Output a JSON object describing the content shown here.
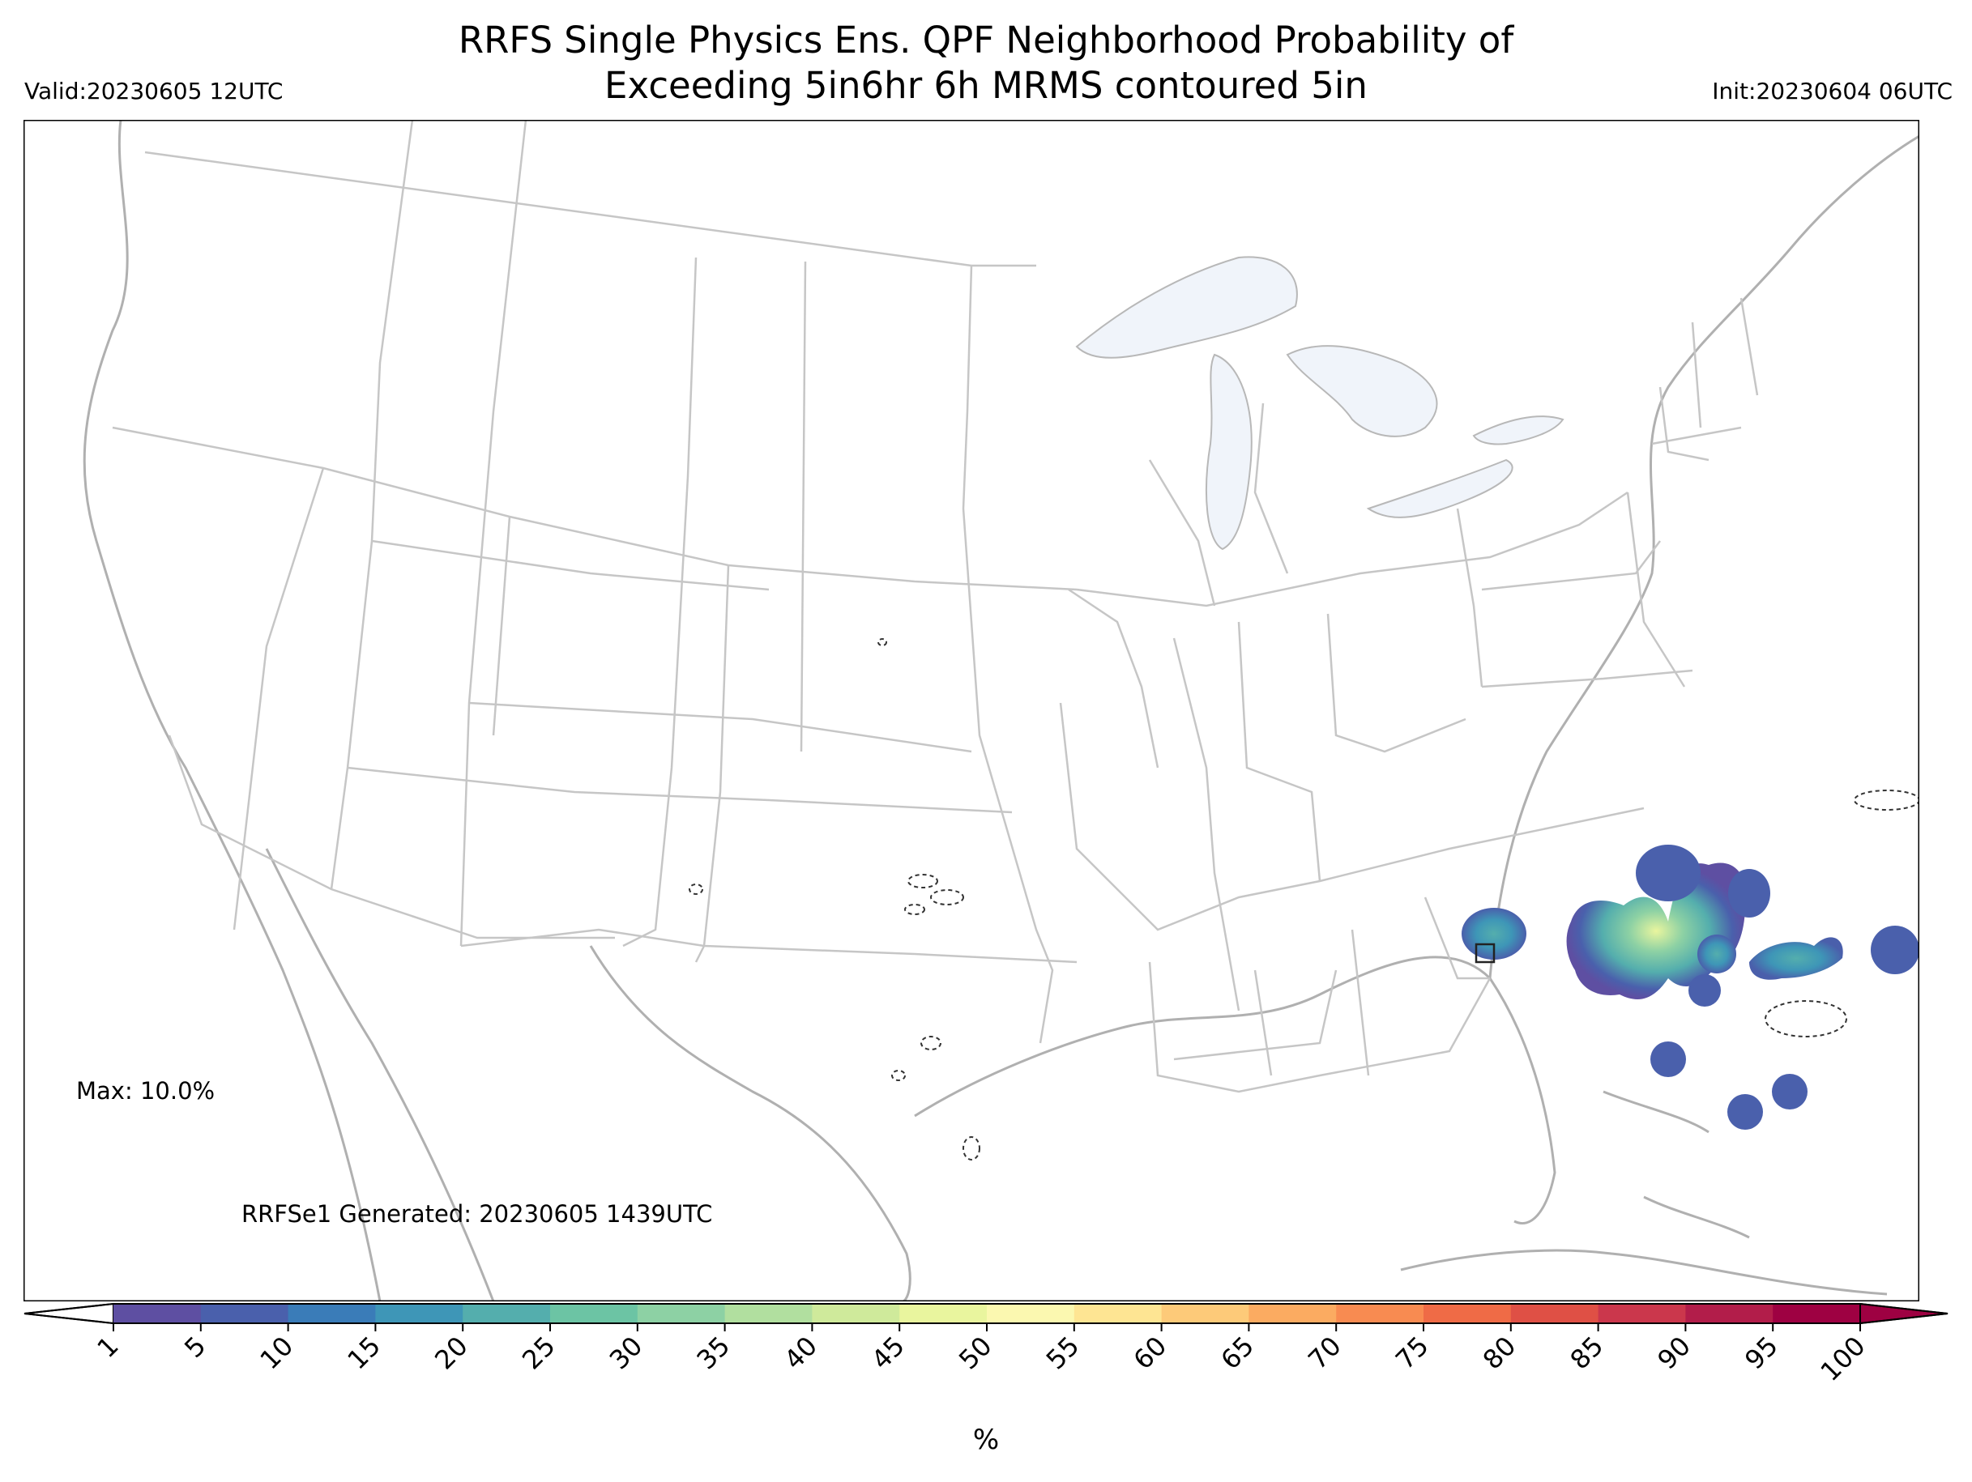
{
  "header": {
    "title_line1": "RRFS Single Physics Ens. QPF Neighborhood Probability of",
    "title_line2": "Exceeding 5in6hr 6h MRMS contoured 5in",
    "valid": "Valid:20230605 12UTC",
    "init": "Init:20230604 06UTC"
  },
  "annotations": {
    "max": "Max: 10.0%",
    "generated": "RRFSe1 Generated: 20230605 1439UTC"
  },
  "colorbar": {
    "ticks": [
      "1",
      "5",
      "10",
      "15",
      "20",
      "25",
      "30",
      "35",
      "40",
      "45",
      "50",
      "55",
      "60",
      "65",
      "70",
      "75",
      "80",
      "85",
      "90",
      "95",
      "100"
    ],
    "colors": [
      "#5e4fa2",
      "#4a60ac",
      "#3a7cb8",
      "#3e96b7",
      "#54aead",
      "#6cc4a4",
      "#8dd1a4",
      "#b1df9f",
      "#cfea9b",
      "#e9f59e",
      "#fbf8b0",
      "#fee593",
      "#fdca79",
      "#fbab61",
      "#f88b51",
      "#ef6b46",
      "#df5045",
      "#cb374c",
      "#b21d4a",
      "#9e0142"
    ],
    "under_color": "#ffffff",
    "over_color": "#9e0142",
    "unit": "%"
  },
  "map": {
    "land_color": "#ffffff",
    "border_color": "#c0c0c0",
    "coast_color": "#b0b0b0",
    "lake_color": "#f0f4fa"
  }
}
